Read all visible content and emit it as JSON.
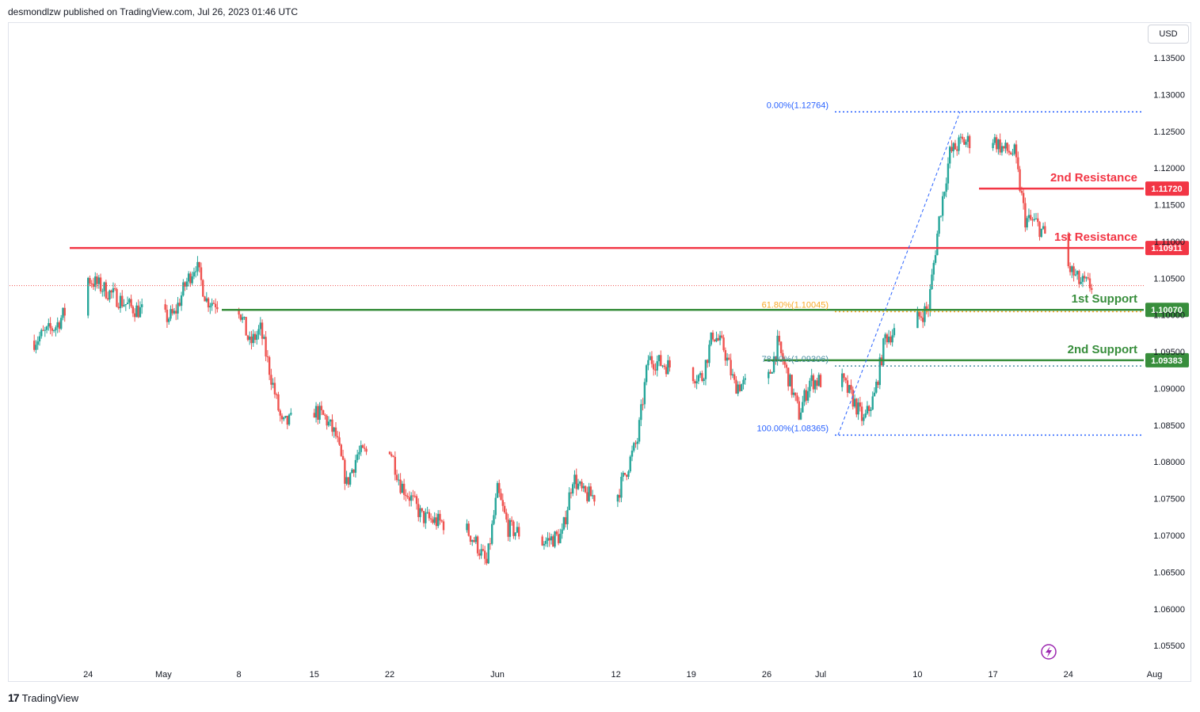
{
  "header": {
    "published_text": "desmondlzw published on TradingView.com, Jul 26, 2023 01:46 UTC"
  },
  "currency_button": "USD",
  "footer": {
    "brand": "TradingView",
    "logo_glyph": "17"
  },
  "colors": {
    "up": "#26a69a",
    "down": "#ef5350",
    "resistance": "#f23645",
    "support": "#388e3c",
    "fib_blue": "#2962ff",
    "fib_orange": "#f9a825",
    "lightning": "#9c27b0"
  },
  "chart_data": {
    "type": "candlestick",
    "symbol_currency": "USD",
    "y_ticks": [
      "1.13500",
      "1.13000",
      "1.12500",
      "1.12000",
      "1.11500",
      "1.11000",
      "1.10500",
      "1.10000",
      "1.09500",
      "1.09000",
      "1.08500",
      "1.08000",
      "1.07500",
      "1.07000",
      "1.06500",
      "1.06000",
      "1.05500"
    ],
    "y_range": [
      1.0535,
      1.1387
    ],
    "x_ticks": [
      "24",
      "May",
      "8",
      "15",
      "22",
      "Jun",
      "12",
      "19",
      "26",
      "Jul",
      "10",
      "17",
      "24",
      "Aug"
    ],
    "keypoints": [
      [
        "2023-04-19",
        1.0965
      ],
      [
        "2023-04-21",
        1.0985
      ],
      [
        "2023-04-24",
        1.105
      ],
      [
        "2023-04-26",
        1.103
      ],
      [
        "2023-04-27",
        1.102
      ],
      [
        "2023-04-28",
        1.101
      ],
      [
        "2023-05-01",
        1.0995
      ],
      [
        "2023-05-02",
        1.1
      ],
      [
        "2023-05-03",
        1.104
      ],
      [
        "2023-05-04",
        1.107
      ],
      [
        "2023-05-05",
        1.102
      ],
      [
        "2023-05-08",
        1.101
      ],
      [
        "2023-05-09",
        1.096
      ],
      [
        "2023-05-10",
        1.098
      ],
      [
        "2023-05-11",
        1.0915
      ],
      [
        "2023-05-12",
        1.085
      ],
      [
        "2023-05-15",
        1.087
      ],
      [
        "2023-05-16",
        1.086
      ],
      [
        "2023-05-17",
        1.0835
      ],
      [
        "2023-05-18",
        1.077
      ],
      [
        "2023-05-19",
        1.081
      ],
      [
        "2023-05-22",
        1.082
      ],
      [
        "2023-05-23",
        1.077
      ],
      [
        "2023-05-24",
        1.075
      ],
      [
        "2023-05-25",
        1.0725
      ],
      [
        "2023-05-26",
        1.072
      ],
      [
        "2023-05-29",
        1.071
      ],
      [
        "2023-05-30",
        1.069
      ],
      [
        "2023-05-31",
        1.066
      ],
      [
        "2023-06-01",
        1.076
      ],
      [
        "2023-06-02",
        1.071
      ],
      [
        "2023-06-05",
        1.069
      ],
      [
        "2023-06-06",
        1.0695
      ],
      [
        "2023-06-07",
        1.07
      ],
      [
        "2023-06-08",
        1.078
      ],
      [
        "2023-06-09",
        1.0755
      ],
      [
        "2023-06-12",
        1.075
      ],
      [
        "2023-06-13",
        1.079
      ],
      [
        "2023-06-14",
        1.083
      ],
      [
        "2023-06-15",
        1.094
      ],
      [
        "2023-06-16",
        1.0935
      ],
      [
        "2023-06-19",
        1.092
      ],
      [
        "2023-06-20",
        1.0915
      ],
      [
        "2023-06-21",
        1.0975
      ],
      [
        "2023-06-22",
        1.0955
      ],
      [
        "2023-06-23",
        1.0905
      ],
      [
        "2023-06-26",
        1.0905
      ],
      [
        "2023-06-27",
        1.096
      ],
      [
        "2023-06-28",
        1.0915
      ],
      [
        "2023-06-29",
        1.0865
      ],
      [
        "2023-06-30",
        1.091
      ],
      [
        "2023-07-03",
        1.091
      ],
      [
        "2023-07-04",
        1.0885
      ],
      [
        "2023-07-05",
        1.0855
      ],
      [
        "2023-07-06",
        1.089
      ],
      [
        "2023-07-07",
        1.097
      ],
      [
        "2023-07-10",
        1.0995
      ],
      [
        "2023-07-11",
        1.101
      ],
      [
        "2023-07-12",
        1.113
      ],
      [
        "2023-07-13",
        1.122
      ],
      [
        "2023-07-14",
        1.1235
      ],
      [
        "2023-07-17",
        1.124
      ],
      [
        "2023-07-18",
        1.1225
      ],
      [
        "2023-07-19",
        1.122
      ],
      [
        "2023-07-20",
        1.113
      ],
      [
        "2023-07-21",
        1.1125
      ],
      [
        "2023-07-24",
        1.1065
      ],
      [
        "2023-07-25",
        1.1045
      ],
      [
        "2023-07-26",
        1.104
      ]
    ],
    "annotations": {
      "resistance_1": {
        "label": "1st Resistance",
        "value": "1.10911"
      },
      "resistance_2": {
        "label": "2nd Resistance",
        "value": "1.11720"
      },
      "support_1": {
        "label": "1st Support",
        "value": "1.10070"
      },
      "support_2": {
        "label": "2nd Support",
        "value": "1.09383"
      },
      "fib_0": {
        "label": "0.00%(1.12764)",
        "value": 1.12764
      },
      "fib_618": {
        "label": "61.80%(1.10045)",
        "value": 1.10045
      },
      "fib_786": {
        "label": "78.60%(1.09306)",
        "value": 1.09306
      },
      "fib_100": {
        "label": "100.00%(1.08365)",
        "value": 1.08365
      }
    },
    "current_price": 1.104
  }
}
